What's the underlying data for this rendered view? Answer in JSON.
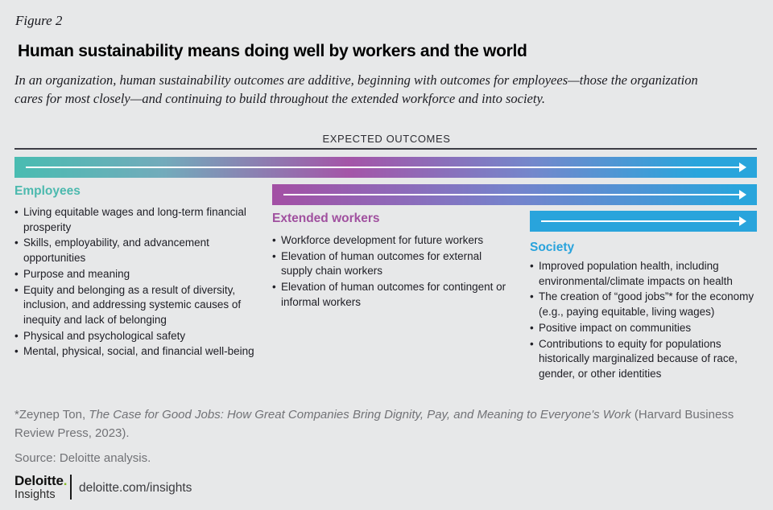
{
  "page": {
    "figure_label": "Figure 2",
    "title": "Human sustainability means doing well by workers and the world",
    "subtitle": "In an organization, human sustainability outcomes are additive, beginning with outcomes for employees—those the organization cares for most closely—and continuing to build throughout the extended workforce and into society.",
    "band_label": "EXPECTED OUTCOMES"
  },
  "glyphs": {
    "bullet": "•"
  },
  "columns": [
    {
      "heading": "Employees",
      "color": "#4cb9ae",
      "items": [
        "Living equitable wages and long-term financial prosperity",
        "Skills, employability, and advancement opportunities",
        "Purpose and meaning",
        "Equity and belonging as a result of diversity, inclusion, and addressing systemic causes of inequity and lack of belonging",
        "Physical and psychological safety",
        "Mental, physical, social, and financial well-being"
      ]
    },
    {
      "heading": "Extended workers",
      "color": "#a0509f",
      "items": [
        "Workforce development for future workers",
        "Elevation of human outcomes for external supply chain workers",
        "Elevation of human outcomes for contingent or informal workers"
      ]
    },
    {
      "heading": "Society",
      "color": "#29a3dc",
      "items": [
        "Improved population health, including environmental/climate impacts on health",
        "The creation of “good jobs”* for the economy (e.g., paying equitable, living wages)",
        "Positive impact on communities",
        "Contributions to equity for populations historically marginalized because of race, gender, or other identities"
      ]
    }
  ],
  "chart_data": {
    "type": "area",
    "title": "Human sustainability means doing well by workers and the world",
    "band_label": "EXPECTED OUTCOMES",
    "series": [
      {
        "name": "Employees",
        "bar_span": "full width",
        "gradient": [
          "#49bcb1",
          "#a455a8",
          "#29a5dc"
        ]
      },
      {
        "name": "Extended workers",
        "bar_span": "from one-third width to right edge",
        "gradient": [
          "#a34fa4",
          "#29a5dc"
        ]
      },
      {
        "name": "Society",
        "bar_span": "from two-thirds width to right edge",
        "gradient": [
          "#29a4dc"
        ]
      }
    ],
    "legend_position": "none",
    "annotations": [
      "Arrows point right indicating additive outcomes building outward from employees to society"
    ]
  },
  "footnote": {
    "prefix": "*Zeynep Ton, ",
    "book_title": "The Case for Good Jobs: How Great Companies Bring Dignity, Pay, and Meaning to Everyone's Work",
    "suffix": " (Harvard Business Review Press, 2023)."
  },
  "source": "Source: Deloitte analysis.",
  "footer": {
    "brand": "Deloitte",
    "brand_dot": ".",
    "brand_sub": "Insights",
    "url": "deloitte.com/insights"
  },
  "colors": {
    "background": "#e7e8e9",
    "teal": "#4cb9ae",
    "purple": "#a0509f",
    "blue": "#29a3dc",
    "bar_cyan": "#29a5dc",
    "deloitte_green": "#86bc25",
    "footnote_gray": "#717276",
    "rule_dark": "#3d3d45"
  }
}
